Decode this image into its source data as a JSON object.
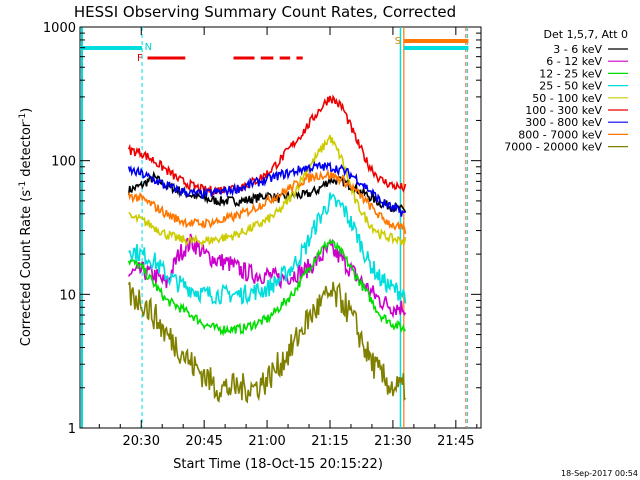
{
  "chart_data": {
    "type": "line",
    "title": "HESSI Observing Summary Count Rates, Corrected",
    "xlabel": "Start Time (18-Oct-15 20:15:22)",
    "ylabel": "Corrected Count Rate (s⁻¹ detector⁻¹)",
    "x_ticks": [
      "20:30",
      "20:45",
      "21:00",
      "21:15",
      "21:30",
      "21:45"
    ],
    "x_tick_minutes": [
      30,
      45,
      60,
      75,
      90,
      105
    ],
    "xlim": [
      15.4,
      111
    ],
    "y_scale": "log",
    "ylim": [
      1,
      1000
    ],
    "y_ticks": [
      "1",
      "10",
      "100",
      "1000"
    ],
    "legend_title": "Det 1,5,7, Att 0",
    "legend_position": "right",
    "timestamp": "18-Sep-2017 00:54",
    "x": [
      27,
      30,
      33,
      36,
      39,
      42,
      45,
      48,
      51,
      54,
      57,
      60,
      63,
      66,
      69,
      72,
      75,
      78,
      81,
      84,
      87,
      90,
      93
    ],
    "series": [
      {
        "name": "3 - 6 keV",
        "color": "#000000",
        "values": [
          60,
          65,
          75,
          65,
          60,
          55,
          52,
          50,
          50,
          50,
          52,
          55,
          52,
          55,
          55,
          60,
          72,
          70,
          62,
          55,
          48,
          45,
          42
        ]
      },
      {
        "name": "6 - 12 keV",
        "color": "#cc00cc",
        "values": [
          14,
          15,
          14,
          12,
          20,
          25,
          20,
          18,
          17,
          15,
          14,
          14,
          13,
          14,
          15,
          18,
          22,
          18,
          14,
          11,
          9,
          8,
          8
        ]
      },
      {
        "name": "12 - 25 keV",
        "color": "#00dd00",
        "values": [
          18,
          16,
          12,
          9,
          8,
          7,
          6,
          5.5,
          5.5,
          5.5,
          6,
          6.5,
          8,
          10,
          14,
          20,
          25,
          20,
          14,
          10,
          7,
          6,
          5.5
        ]
      },
      {
        "name": "25 - 50 keV",
        "color": "#00dddd",
        "values": [
          22,
          20,
          18,
          14,
          12,
          11,
          10,
          10,
          10,
          10,
          10.5,
          11,
          13,
          16,
          22,
          35,
          50,
          45,
          30,
          18,
          13,
          11,
          10
        ]
      },
      {
        "name": "50 - 100 keV",
        "color": "#cccc00",
        "values": [
          38,
          36,
          32,
          28,
          26,
          25,
          25,
          26,
          27,
          29,
          32,
          36,
          42,
          55,
          80,
          110,
          150,
          100,
          50,
          35,
          28,
          26,
          25
        ]
      },
      {
        "name": "100 - 300 keV",
        "color": "#ee0000",
        "values": [
          120,
          115,
          100,
          85,
          72,
          65,
          60,
          60,
          62,
          65,
          70,
          80,
          100,
          130,
          170,
          230,
          300,
          250,
          150,
          95,
          72,
          65,
          62
        ]
      },
      {
        "name": "300 - 800 keV",
        "color": "#0000ee",
        "values": [
          85,
          80,
          72,
          65,
          60,
          57,
          56,
          58,
          60,
          63,
          68,
          72,
          78,
          82,
          88,
          90,
          90,
          85,
          75,
          62,
          50,
          44,
          40
        ]
      },
      {
        "name": "800 - 7000 keV",
        "color": "#ff7700",
        "values": [
          55,
          52,
          46,
          40,
          36,
          34,
          34,
          35,
          37,
          40,
          44,
          50,
          56,
          64,
          72,
          78,
          78,
          72,
          60,
          48,
          38,
          33,
          30
        ]
      },
      {
        "name": "7000 - 20000 keV",
        "color": "#808000",
        "values": [
          10,
          9,
          7,
          5,
          4,
          3,
          2.5,
          2,
          2,
          2,
          2,
          2.3,
          3,
          4,
          6,
          8,
          10,
          9,
          6,
          3.5,
          2.5,
          2,
          2
        ]
      }
    ],
    "annotations": [
      {
        "label": "N",
        "color": "#00cccc"
      },
      {
        "label": "F",
        "color": "#dd0000"
      },
      {
        "label": "S",
        "color": "#dd8800"
      }
    ]
  }
}
